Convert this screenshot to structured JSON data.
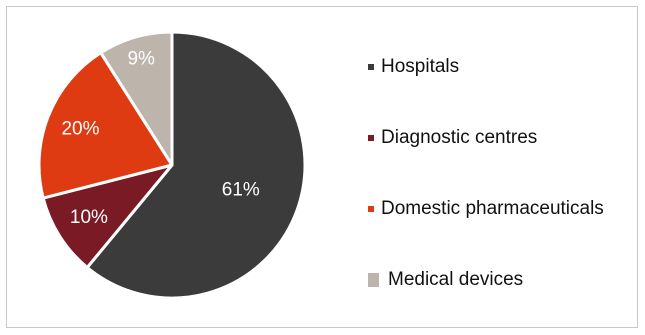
{
  "chart_data": {
    "type": "pie",
    "title": "",
    "slices": [
      {
        "label": "Hospitals",
        "value": 61,
        "value_label": "61%",
        "color": "#3b3b3b"
      },
      {
        "label": "Diagnostic centres",
        "value": 10,
        "value_label": "10%",
        "color": "#7a1a24"
      },
      {
        "label": "Domestic pharmaceuticals",
        "value": 20,
        "value_label": "20%",
        "color": "#de3b12"
      },
      {
        "label": "Medical devices",
        "value": 9,
        "value_label": "9%",
        "color": "#bdb5ab"
      }
    ],
    "start_angle_deg": 0,
    "direction": "clockwise",
    "legend_position": "right"
  }
}
